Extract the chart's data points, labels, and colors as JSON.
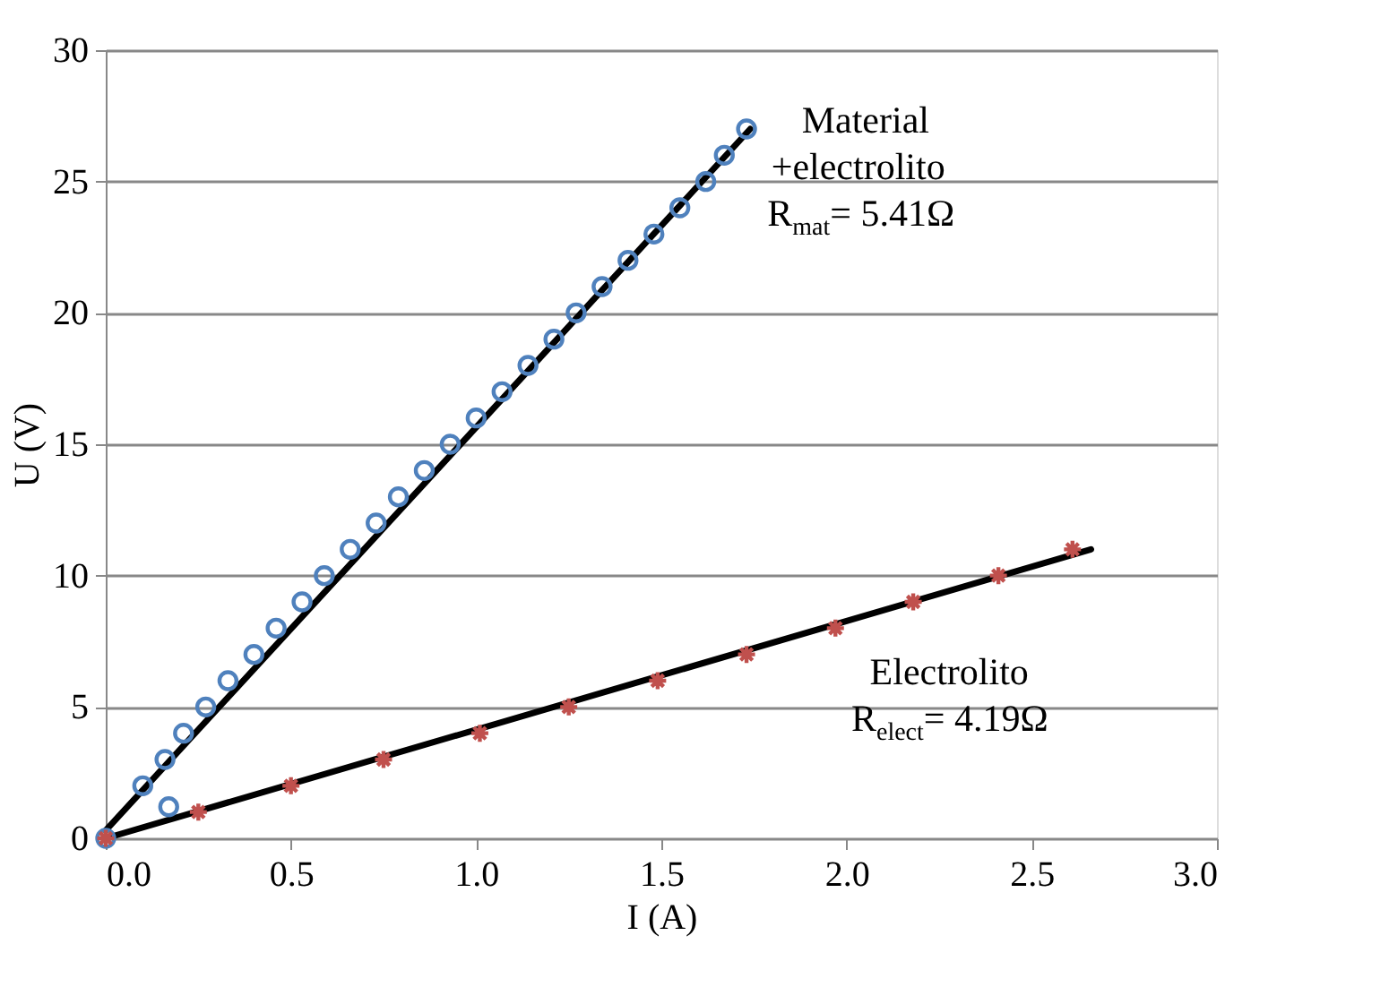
{
  "chart_data": {
    "type": "scatter",
    "xlabel": "I (A)",
    "ylabel": "U (V)",
    "xlim": [
      0,
      3
    ],
    "xticks": [
      {
        "value": 0,
        "label": "0.0"
      },
      {
        "value": 0.5,
        "label": "0.5"
      },
      {
        "value": 1,
        "label": "1.0"
      },
      {
        "value": 1.5,
        "label": "1.5"
      },
      {
        "value": 2,
        "label": "2.0"
      },
      {
        "value": 2.5,
        "label": "2.5"
      },
      {
        "value": 3,
        "label": "3.0"
      }
    ],
    "ylim": [
      0,
      30
    ],
    "yticks": [
      0,
      5,
      10,
      15,
      20,
      25,
      30
    ],
    "grid": "y",
    "legend": false,
    "series": [
      {
        "type": "line",
        "color": "#000000",
        "marker": "none",
        "line_style": "solid",
        "x": [
          0,
          1.74
        ],
        "values": [
          0.3,
          27
        ]
      },
      {
        "type": "line",
        "color": "#000000",
        "marker": "none",
        "line_style": "solid",
        "x": [
          0,
          2.66
        ],
        "values": [
          0,
          11
        ]
      },
      {
        "color": "#4f81bd",
        "marker": "circle",
        "x": [
          0,
          0.1,
          0.17,
          0.16,
          0.21,
          0.27,
          0.33,
          0.4,
          0.46,
          0.53,
          0.59,
          0.66,
          0.73,
          0.79,
          0.86,
          0.93,
          1.0,
          1.07,
          1.14,
          1.21,
          1.27,
          1.34,
          1.41,
          1.48,
          1.55,
          1.62,
          1.67,
          1.73
        ],
        "values": [
          0,
          2,
          1.2,
          3,
          4,
          5,
          6,
          7,
          8,
          9,
          10,
          11,
          12,
          13,
          14,
          15,
          16,
          17,
          18,
          19,
          20,
          21,
          22,
          23,
          24,
          25,
          26,
          27
        ]
      },
      {
        "color": "#c0504d",
        "marker": "cross",
        "x": [
          0,
          0.25,
          0.5,
          0.75,
          1.01,
          1.25,
          1.49,
          1.73,
          1.97,
          2.18,
          2.41,
          2.61
        ],
        "values": [
          0,
          1,
          2,
          3,
          4,
          5,
          6,
          7,
          8,
          9,
          10,
          11
        ]
      }
    ],
    "annotations": [
      "Material\n+electrolito\nR$_{mat}$= 5.41Ω",
      "Electrolito\nR$_{elect}$= 4.19Ω"
    ]
  }
}
